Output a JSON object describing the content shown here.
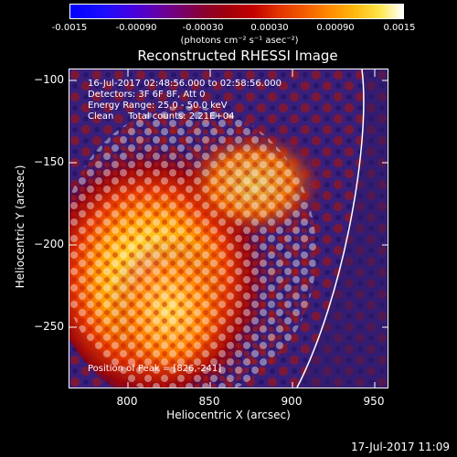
{
  "colorbar": {
    "ticks": [
      "-0.0015",
      "-0.00090",
      "-0.00030",
      "0.00030",
      "0.00090",
      "0.0015"
    ],
    "unit_label": "(photons cm⁻² s⁻¹ asec⁻²)"
  },
  "title": "Reconstructed RHESSI Image",
  "info": {
    "line1": "16-Jul-2017 02:48:56.000 to 02:58:56.000",
    "line2": "Detectors: 3F 6F 8F, Att 0",
    "line3": "Energy Range: 25.0 - 50.0 keV",
    "line4": "Clean     Total counts: 2.21E+04"
  },
  "peak": "Position of Peak = [826,-241]",
  "x_axis": {
    "label": "Heliocentric X (arcsec)",
    "ticks": [
      "800",
      "850",
      "900",
      "950"
    ]
  },
  "y_axis": {
    "label": "Heliocentric Y (arcsec)",
    "ticks": [
      "−100",
      "−150",
      "−200",
      "−250"
    ]
  },
  "timestamp": "17-Jul-2017 11:09",
  "colors": {
    "colorbar_low": "#0000ff",
    "colorbar_mid": "#b00000",
    "colorbar_high": "#ffffff",
    "background_image": "#3a1f7a",
    "limb_line": "#ffffff"
  }
}
